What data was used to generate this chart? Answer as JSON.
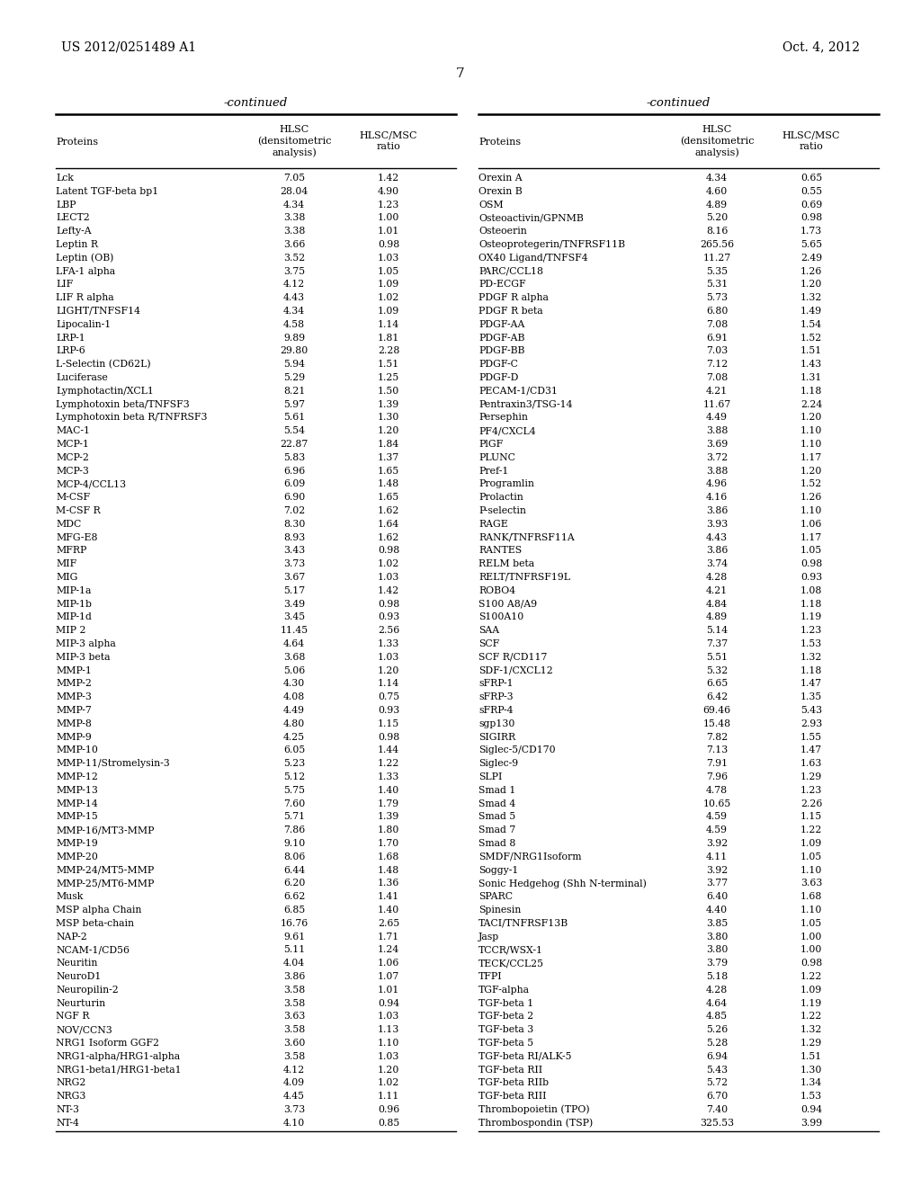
{
  "page_number": "7",
  "patent_left": "US 2012/0251489 A1",
  "patent_right": "Oct. 4, 2012",
  "continued_label": "-continued",
  "left_data": [
    [
      "Lck",
      "7.05",
      "1.42"
    ],
    [
      "Latent TGF-beta bp1",
      "28.04",
      "4.90"
    ],
    [
      "LBP",
      "4.34",
      "1.23"
    ],
    [
      "LECT2",
      "3.38",
      "1.00"
    ],
    [
      "Lefty-A",
      "3.38",
      "1.01"
    ],
    [
      "Leptin R",
      "3.66",
      "0.98"
    ],
    [
      "Leptin (OB)",
      "3.52",
      "1.03"
    ],
    [
      "LFA-1 alpha",
      "3.75",
      "1.05"
    ],
    [
      "LIF",
      "4.12",
      "1.09"
    ],
    [
      "LIF R alpha",
      "4.43",
      "1.02"
    ],
    [
      "LIGHT/TNFSF14",
      "4.34",
      "1.09"
    ],
    [
      "Lipocalin-1",
      "4.58",
      "1.14"
    ],
    [
      "LRP-1",
      "9.89",
      "1.81"
    ],
    [
      "LRP-6",
      "29.80",
      "2.28"
    ],
    [
      "L-Selectin (CD62L)",
      "5.94",
      "1.51"
    ],
    [
      "Luciferase",
      "5.29",
      "1.25"
    ],
    [
      "Lymphotactin/XCL1",
      "8.21",
      "1.50"
    ],
    [
      "Lymphotoxin beta/TNFSF3",
      "5.97",
      "1.39"
    ],
    [
      "Lymphotoxin beta R/TNFRSF3",
      "5.61",
      "1.30"
    ],
    [
      "MAC-1",
      "5.54",
      "1.20"
    ],
    [
      "MCP-1",
      "22.87",
      "1.84"
    ],
    [
      "MCP-2",
      "5.83",
      "1.37"
    ],
    [
      "MCP-3",
      "6.96",
      "1.65"
    ],
    [
      "MCP-4/CCL13",
      "6.09",
      "1.48"
    ],
    [
      "M-CSF",
      "6.90",
      "1.65"
    ],
    [
      "M-CSF R",
      "7.02",
      "1.62"
    ],
    [
      "MDC",
      "8.30",
      "1.64"
    ],
    [
      "MFG-E8",
      "8.93",
      "1.62"
    ],
    [
      "MFRP",
      "3.43",
      "0.98"
    ],
    [
      "MIF",
      "3.73",
      "1.02"
    ],
    [
      "MIG",
      "3.67",
      "1.03"
    ],
    [
      "MIP-1a",
      "5.17",
      "1.42"
    ],
    [
      "MIP-1b",
      "3.49",
      "0.98"
    ],
    [
      "MIP-1d",
      "3.45",
      "0.93"
    ],
    [
      "MIP 2",
      "11.45",
      "2.56"
    ],
    [
      "MIP-3 alpha",
      "4.64",
      "1.33"
    ],
    [
      "MIP-3 beta",
      "3.68",
      "1.03"
    ],
    [
      "MMP-1",
      "5.06",
      "1.20"
    ],
    [
      "MMP-2",
      "4.30",
      "1.14"
    ],
    [
      "MMP-3",
      "4.08",
      "0.75"
    ],
    [
      "MMP-7",
      "4.49",
      "0.93"
    ],
    [
      "MMP-8",
      "4.80",
      "1.15"
    ],
    [
      "MMP-9",
      "4.25",
      "0.98"
    ],
    [
      "MMP-10",
      "6.05",
      "1.44"
    ],
    [
      "MMP-11/Stromelysin-3",
      "5.23",
      "1.22"
    ],
    [
      "MMP-12",
      "5.12",
      "1.33"
    ],
    [
      "MMP-13",
      "5.75",
      "1.40"
    ],
    [
      "MMP-14",
      "7.60",
      "1.79"
    ],
    [
      "MMP-15",
      "5.71",
      "1.39"
    ],
    [
      "MMP-16/MT3-MMP",
      "7.86",
      "1.80"
    ],
    [
      "MMP-19",
      "9.10",
      "1.70"
    ],
    [
      "MMP-20",
      "8.06",
      "1.68"
    ],
    [
      "MMP-24/MT5-MMP",
      "6.44",
      "1.48"
    ],
    [
      "MMP-25/MT6-MMP",
      "6.20",
      "1.36"
    ],
    [
      "Musk",
      "6.62",
      "1.41"
    ],
    [
      "MSP alpha Chain",
      "6.85",
      "1.40"
    ],
    [
      "MSP beta-chain",
      "16.76",
      "2.65"
    ],
    [
      "NAP-2",
      "9.61",
      "1.71"
    ],
    [
      "NCAM-1/CD56",
      "5.11",
      "1.24"
    ],
    [
      "Neuritin",
      "4.04",
      "1.06"
    ],
    [
      "NeuroD1",
      "3.86",
      "1.07"
    ],
    [
      "Neuropilin-2",
      "3.58",
      "1.01"
    ],
    [
      "Neurturin",
      "3.58",
      "0.94"
    ],
    [
      "NGF R",
      "3.63",
      "1.03"
    ],
    [
      "NOV/CCN3",
      "3.58",
      "1.13"
    ],
    [
      "NRG1 Isoform GGF2",
      "3.60",
      "1.10"
    ],
    [
      "NRG1-alpha/HRG1-alpha",
      "3.58",
      "1.03"
    ],
    [
      "NRG1-beta1/HRG1-beta1",
      "4.12",
      "1.20"
    ],
    [
      "NRG2",
      "4.09",
      "1.02"
    ],
    [
      "NRG3",
      "4.45",
      "1.11"
    ],
    [
      "NT-3",
      "3.73",
      "0.96"
    ],
    [
      "NT-4",
      "4.10",
      "0.85"
    ]
  ],
  "right_data": [
    [
      "Orexin A",
      "4.34",
      "0.65"
    ],
    [
      "Orexin B",
      "4.60",
      "0.55"
    ],
    [
      "OSM",
      "4.89",
      "0.69"
    ],
    [
      "Osteoactivin/GPNMB",
      "5.20",
      "0.98"
    ],
    [
      "Osteoerin",
      "8.16",
      "1.73"
    ],
    [
      "Osteoprotegerin/TNFRSF11B",
      "265.56",
      "5.65"
    ],
    [
      "OX40 Ligand/TNFSF4",
      "11.27",
      "2.49"
    ],
    [
      "PARC/CCL18",
      "5.35",
      "1.26"
    ],
    [
      "PD-ECGF",
      "5.31",
      "1.20"
    ],
    [
      "PDGF R alpha",
      "5.73",
      "1.32"
    ],
    [
      "PDGF R beta",
      "6.80",
      "1.49"
    ],
    [
      "PDGF-AA",
      "7.08",
      "1.54"
    ],
    [
      "PDGF-AB",
      "6.91",
      "1.52"
    ],
    [
      "PDGF-BB",
      "7.03",
      "1.51"
    ],
    [
      "PDGF-C",
      "7.12",
      "1.43"
    ],
    [
      "PDGF-D",
      "7.08",
      "1.31"
    ],
    [
      "PECAM-1/CD31",
      "4.21",
      "1.18"
    ],
    [
      "Pentraxin3/TSG-14",
      "11.67",
      "2.24"
    ],
    [
      "Persephin",
      "4.49",
      "1.20"
    ],
    [
      "PF4/CXCL4",
      "3.88",
      "1.10"
    ],
    [
      "PlGF",
      "3.69",
      "1.10"
    ],
    [
      "PLUNC",
      "3.72",
      "1.17"
    ],
    [
      "Pref-1",
      "3.88",
      "1.20"
    ],
    [
      "Programlin",
      "4.96",
      "1.52"
    ],
    [
      "Prolactin",
      "4.16",
      "1.26"
    ],
    [
      "P-selectin",
      "3.86",
      "1.10"
    ],
    [
      "RAGE",
      "3.93",
      "1.06"
    ],
    [
      "RANK/TNFRSF11A",
      "4.43",
      "1.17"
    ],
    [
      "RANTES",
      "3.86",
      "1.05"
    ],
    [
      "RELM beta",
      "3.74",
      "0.98"
    ],
    [
      "RELT/TNFRSF19L",
      "4.28",
      "0.93"
    ],
    [
      "ROBO4",
      "4.21",
      "1.08"
    ],
    [
      "S100 A8/A9",
      "4.84",
      "1.18"
    ],
    [
      "S100A10",
      "4.89",
      "1.19"
    ],
    [
      "SAA",
      "5.14",
      "1.23"
    ],
    [
      "SCF",
      "7.37",
      "1.53"
    ],
    [
      "SCF R/CD117",
      "5.51",
      "1.32"
    ],
    [
      "SDF-1/CXCL12",
      "5.32",
      "1.18"
    ],
    [
      "sFRP-1",
      "6.65",
      "1.47"
    ],
    [
      "sFRP-3",
      "6.42",
      "1.35"
    ],
    [
      "sFRP-4",
      "69.46",
      "5.43"
    ],
    [
      "sgp130",
      "15.48",
      "2.93"
    ],
    [
      "SIGIRR",
      "7.82",
      "1.55"
    ],
    [
      "Siglec-5/CD170",
      "7.13",
      "1.47"
    ],
    [
      "Siglec-9",
      "7.91",
      "1.63"
    ],
    [
      "SLPI",
      "7.96",
      "1.29"
    ],
    [
      "Smad 1",
      "4.78",
      "1.23"
    ],
    [
      "Smad 4",
      "10.65",
      "2.26"
    ],
    [
      "Smad 5",
      "4.59",
      "1.15"
    ],
    [
      "Smad 7",
      "4.59",
      "1.22"
    ],
    [
      "Smad 8",
      "3.92",
      "1.09"
    ],
    [
      "SMDF/NRG1Isoform",
      "4.11",
      "1.05"
    ],
    [
      "Soggy-1",
      "3.92",
      "1.10"
    ],
    [
      "Sonic Hedgehog (Shh N-terminal)",
      "3.77",
      "3.63"
    ],
    [
      "SPARC",
      "6.40",
      "1.68"
    ],
    [
      "Spinesin",
      "4.40",
      "1.10"
    ],
    [
      "TACI/TNFRSF13B",
      "3.85",
      "1.05"
    ],
    [
      "Jasp",
      "3.80",
      "1.00"
    ],
    [
      "TCCR/WSX-1",
      "3.80",
      "1.00"
    ],
    [
      "TECK/CCL25",
      "3.79",
      "0.98"
    ],
    [
      "TFPI",
      "5.18",
      "1.22"
    ],
    [
      "TGF-alpha",
      "4.28",
      "1.09"
    ],
    [
      "TGF-beta 1",
      "4.64",
      "1.19"
    ],
    [
      "TGF-beta 2",
      "4.85",
      "1.22"
    ],
    [
      "TGF-beta 3",
      "5.26",
      "1.32"
    ],
    [
      "TGF-beta 5",
      "5.28",
      "1.29"
    ],
    [
      "TGF-beta RI/ALK-5",
      "6.94",
      "1.51"
    ],
    [
      "TGF-beta RII",
      "5.43",
      "1.30"
    ],
    [
      "TGF-beta RIIb",
      "5.72",
      "1.34"
    ],
    [
      "TGF-beta RIII",
      "6.70",
      "1.53"
    ],
    [
      "Thrombopoietin (TPO)",
      "7.40",
      "0.94"
    ],
    [
      "Thrombospondin (TSP)",
      "325.53",
      "3.99"
    ]
  ],
  "bg_color": "#ffffff",
  "text_color": "#000000",
  "font_size_header": 9.5,
  "font_size_patent": 10,
  "font_size_data": 7.8,
  "font_size_col_header": 8.0,
  "font_size_page": 11
}
